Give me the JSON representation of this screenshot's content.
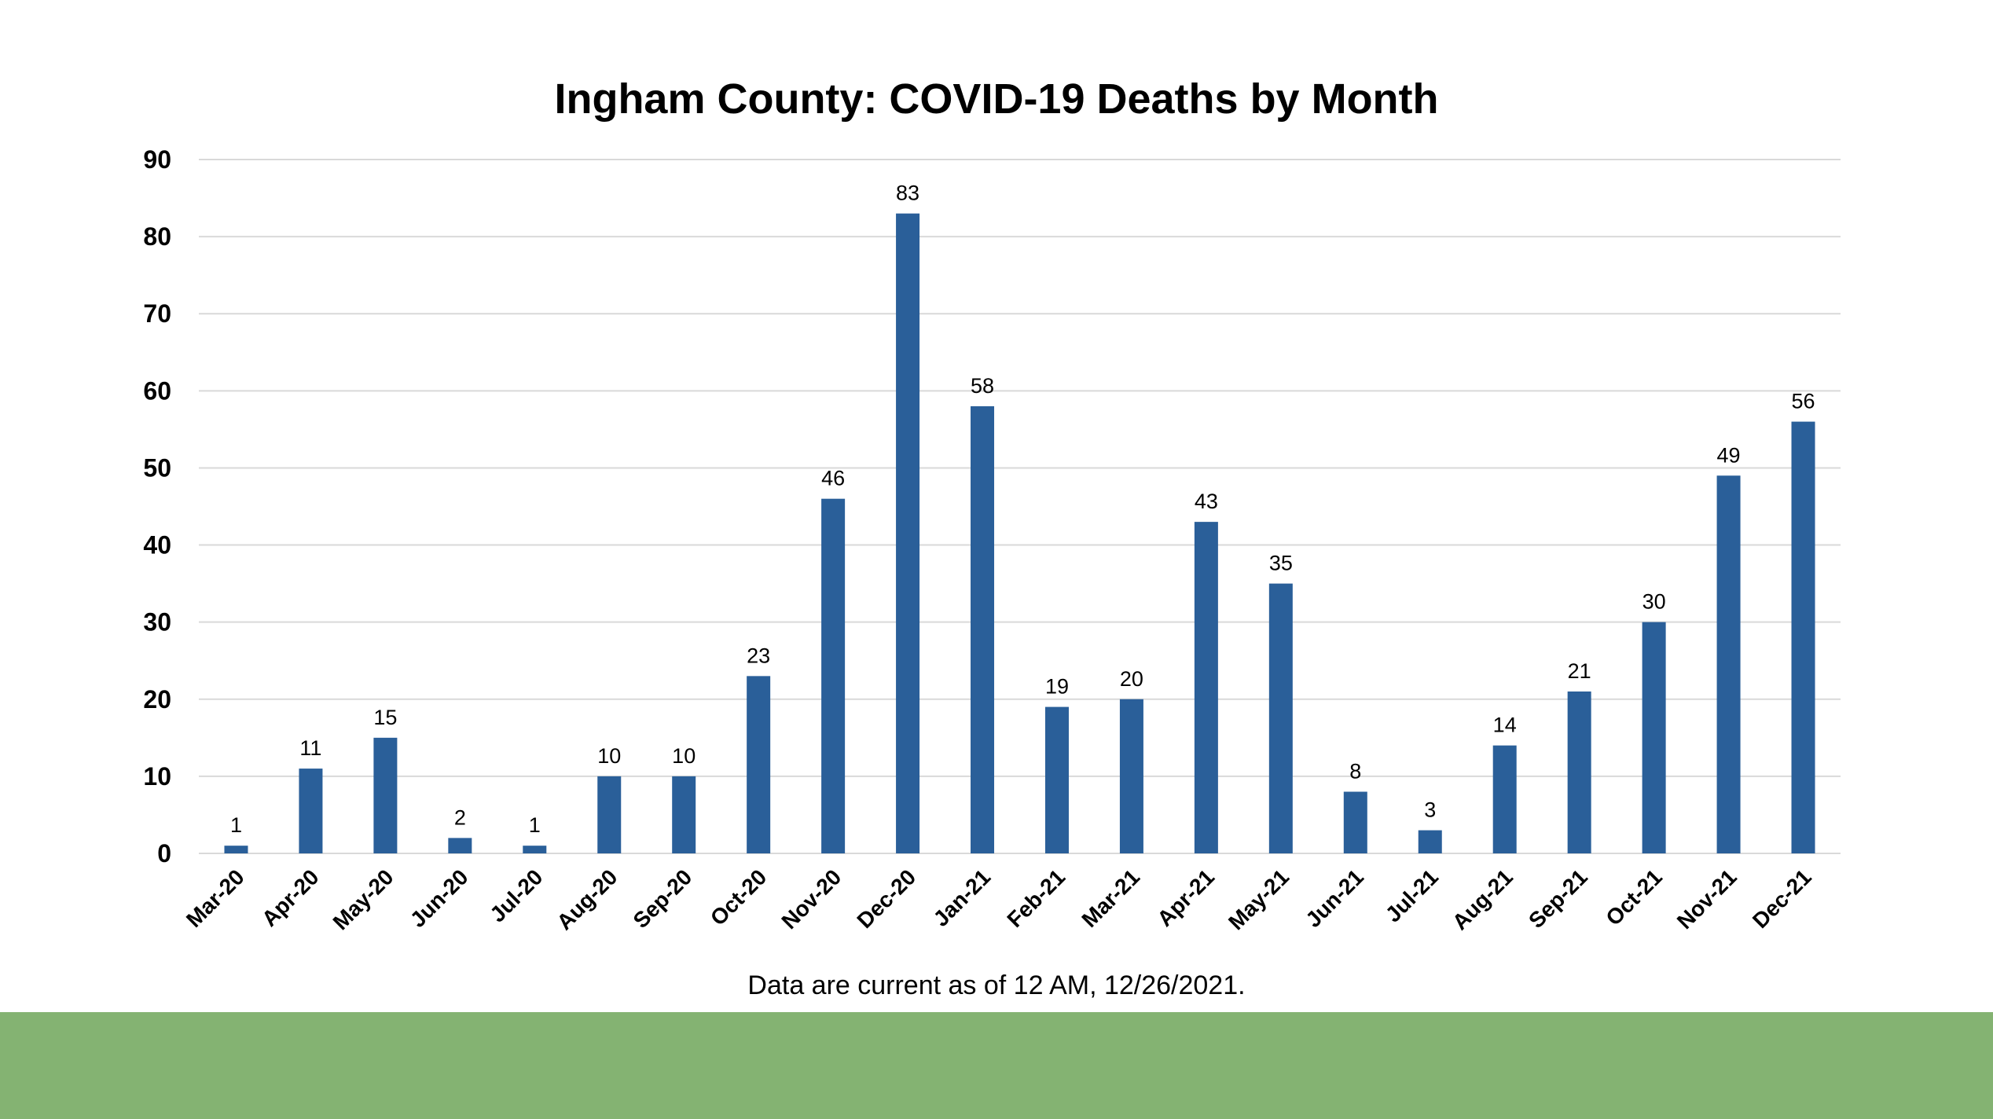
{
  "chart_data": {
    "type": "bar",
    "title": "Ingham County: COVID-19 Deaths by Month",
    "note": "Data are current as of 12 AM, 12/26/2021.",
    "categories": [
      "Mar-20",
      "Apr-20",
      "May-20",
      "Jun-20",
      "Jul-20",
      "Aug-20",
      "Sep-20",
      "Oct-20",
      "Nov-20",
      "Dec-20",
      "Jan-21",
      "Feb-21",
      "Mar-21",
      "Apr-21",
      "May-21",
      "Jun-21",
      "Jul-21",
      "Aug-21",
      "Sep-21",
      "Oct-21",
      "Nov-21",
      "Dec-21"
    ],
    "values": [
      1,
      11,
      15,
      2,
      1,
      10,
      10,
      23,
      46,
      83,
      58,
      19,
      20,
      43,
      35,
      8,
      3,
      14,
      21,
      30,
      49,
      56
    ],
    "ylim": [
      0,
      90
    ],
    "yticks": [
      0,
      10,
      20,
      30,
      40,
      50,
      60,
      70,
      80,
      90
    ],
    "grid": true,
    "data_labels": true,
    "bar_color": "#2a5f99",
    "grid_color": "#d9d9d9"
  },
  "footer": {
    "band_color": "#84b372"
  }
}
